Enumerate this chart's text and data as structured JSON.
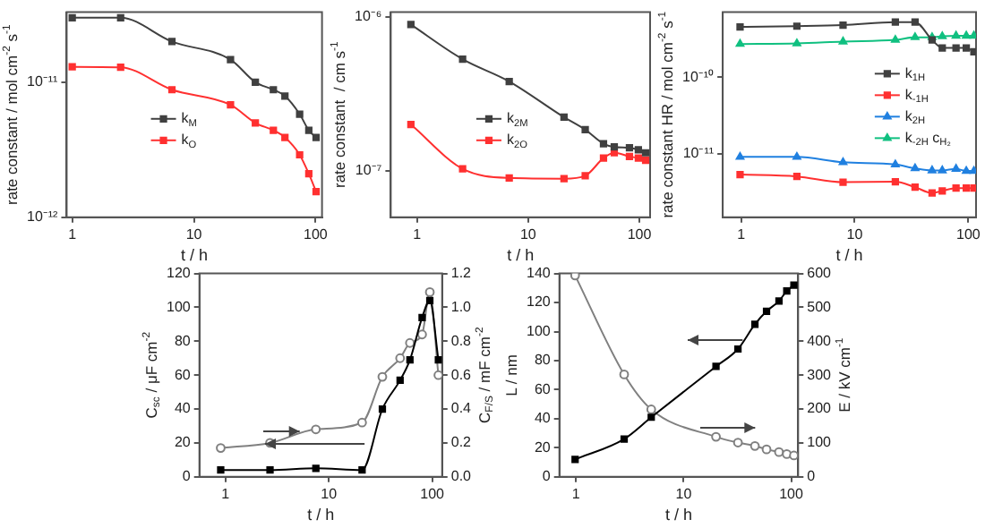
{
  "chart_data": [
    {
      "type": "line",
      "xlabel": "t / h",
      "ylabel": "rate constant / mol cm$^{-2}$ s$^{-1}$",
      "log": "xy",
      "marker": "square",
      "legend": "center",
      "grid": false,
      "x": [
        1,
        2.5,
        6.6,
        20,
        32,
        45,
        56,
        74,
        88,
        101
      ],
      "xlim": [
        0.9,
        113
      ],
      "xticks": [
        1,
        10,
        100
      ],
      "ylim": [
        1e-12,
        3.3e-11
      ],
      "yticks": [
        {
          "value": 1e-12,
          "label": "10⁻¹²"
        },
        {
          "value": 1e-11,
          "label": "10⁻¹¹"
        }
      ],
      "series": [
        {
          "name": "k$_{M}$",
          "color": "#404040",
          "values": [
            3e-11,
            3e-11,
            2e-11,
            1.47e-11,
            1e-11,
            8.8e-12,
            7.9e-12,
            5.8e-12,
            4.4e-12,
            3.9e-12
          ]
        },
        {
          "name": "k$_{O}$",
          "color": "#ff3030",
          "values": [
            1.3e-11,
            1.29e-11,
            8.8e-12,
            6.8e-12,
            5e-12,
            4.4e-12,
            3.9e-12,
            2.9e-12,
            2.1e-12,
            1.55e-12
          ]
        }
      ]
    },
    {
      "type": "line",
      "xlabel": "t / h",
      "ylabel": "rate constant  / cm s$^{-1}$",
      "log": "xy",
      "marker": "square",
      "legend": "center",
      "grid": false,
      "x": [
        0.88,
        2.57,
        6.75,
        21,
        32.6,
        47.6,
        59.5,
        81.5,
        98,
        114
      ],
      "xlim": [
        0.58,
        125
      ],
      "xticks": [
        1,
        10,
        100
      ],
      "ylim": [
        5e-08,
        1.07e-06
      ],
      "yticks": [
        {
          "value": 1e-07,
          "label": "10⁻⁷"
        },
        {
          "value": 1e-06,
          "label": "10⁻⁶"
        }
      ],
      "series": [
        {
          "name": "k$_{2M}$",
          "color": "#404040",
          "values": [
            8.9e-07,
            5.3e-07,
            3.8e-07,
            2.23e-07,
            1.85e-07,
            1.5e-07,
            1.43e-07,
            1.41e-07,
            1.37e-07,
            1.31e-07
          ]
        },
        {
          "name": "k$_{2O}$",
          "color": "#ff3030",
          "values": [
            2e-07,
            1.03e-07,
            9e-08,
            8.9e-08,
            9.3e-08,
            1.21e-07,
            1.31e-07,
            1.24e-07,
            1.21e-07,
            1.17e-07
          ]
        }
      ]
    },
    {
      "type": "line",
      "xlabel": "t / h",
      "ylabel": "rate constant HR / mol cm$^{-2}$ s$^{-1}$",
      "log": "xy",
      "marker": "square",
      "legend": "right",
      "grid": false,
      "x": [
        0.98,
        3.1,
        7.9,
        22.8,
        34,
        48,
        59,
        78,
        96,
        112
      ],
      "xlim": [
        0.69,
        117
      ],
      "xticks": [
        1,
        10,
        100
      ],
      "ylim": [
        1.5e-12,
        7e-10
      ],
      "yticks": [
        {
          "value": 1e-11,
          "label": "10⁻¹¹"
        },
        {
          "value": 1e-10,
          "label": "10⁻¹⁰"
        }
      ],
      "series": [
        {
          "name": "k$_{1H}$",
          "color": "#404040",
          "values": [
            4.5e-10,
            4.6e-10,
            4.75e-10,
            5.2e-10,
            5.2e-10,
            3.05e-10,
            2.4e-10,
            2.4e-10,
            2.4e-10,
            2.14e-10
          ]
        },
        {
          "name": "k$_{-1H}$",
          "color": "#ff3030",
          "values": [
            5.4e-12,
            5.1e-12,
            4.3e-12,
            4.35e-12,
            3.7e-12,
            3.1e-12,
            3.3e-12,
            3.6e-12,
            3.6e-12,
            3.6e-12
          ]
        },
        {
          "name": "k$_{2H}$",
          "color": "#2080e0",
          "marker": "triangle",
          "values": [
            9.15e-12,
            9.15e-12,
            7.8e-12,
            7.3e-12,
            6.5e-12,
            6.1e-12,
            6.1e-12,
            6.4e-12,
            6e-12,
            6e-12
          ]
        },
        {
          "name": "k$_{-2H}$ c$_{H₂}$",
          "color": "#10c080",
          "marker": "triangle",
          "values": [
            2.7e-10,
            2.74e-10,
            2.9e-10,
            3.05e-10,
            3.3e-10,
            3.3e-10,
            3.4e-10,
            3.45e-10,
            3.45e-10,
            3.45e-10
          ]
        }
      ]
    },
    {
      "type": "line",
      "xlabel": "t / h",
      "ylabel": "C$_{sc}$ / μF cm$^{-2}$",
      "y2label": "C$_{F/S}$ / mF cm$^{-2}$",
      "log": "x",
      "grid": false,
      "x": [
        0.9,
        2.7,
        7.5,
        21,
        33,
        49,
        61,
        80,
        95,
        115
      ],
      "xlim": [
        0.56,
        125
      ],
      "xticks": [
        1,
        10,
        100
      ],
      "ylim": [
        0,
        120
      ],
      "yticks": [
        0,
        20,
        40,
        60,
        80,
        100,
        120
      ],
      "y2lim": [
        0,
        1.2
      ],
      "y2ticks": [
        {
          "value": 0,
          "label": "0.0"
        },
        0.2,
        0.4,
        0.6,
        0.8,
        {
          "value": 1,
          "label": "1.0"
        },
        1.2
      ],
      "series": [
        {
          "color": "#000000",
          "marker": "square",
          "values": [
            4,
            4,
            5,
            4,
            40,
            57,
            69,
            94,
            104,
            69
          ]
        },
        {
          "color": "#808080",
          "marker": "circle",
          "axis": "y2",
          "values": [
            0.17,
            0.2,
            0.28,
            0.32,
            0.59,
            0.7,
            0.79,
            0.84,
            1.09,
            0.6
          ]
        }
      ]
    },
    {
      "type": "line",
      "xlabel": "t / h",
      "ylabel": "L / nm",
      "y2label": "E / kV cm$^{-1}$",
      "log": "x",
      "grid": false,
      "x": [
        0.98,
        2.8,
        5,
        20,
        32,
        46,
        59,
        77,
        91,
        106
      ],
      "xlim": [
        0.71,
        116
      ],
      "xticks": [
        1,
        10,
        100
      ],
      "ylim": [
        0,
        140
      ],
      "yticks": [
        0,
        20,
        40,
        60,
        80,
        100,
        120,
        140
      ],
      "y2lim": [
        0,
        600
      ],
      "y2ticks": [
        0,
        100,
        200,
        300,
        400,
        500,
        600
      ],
      "series": [
        {
          "color": "#000000",
          "marker": "square",
          "values": [
            12,
            26,
            41,
            76,
            88,
            105,
            114,
            121,
            128,
            132
          ]
        },
        {
          "color": "#808080",
          "marker": "circle",
          "axis": "y2",
          "values": [
            594,
            302,
            199,
            118,
            101,
            91,
            81,
            73,
            67,
            63
          ]
        }
      ]
    }
  ]
}
